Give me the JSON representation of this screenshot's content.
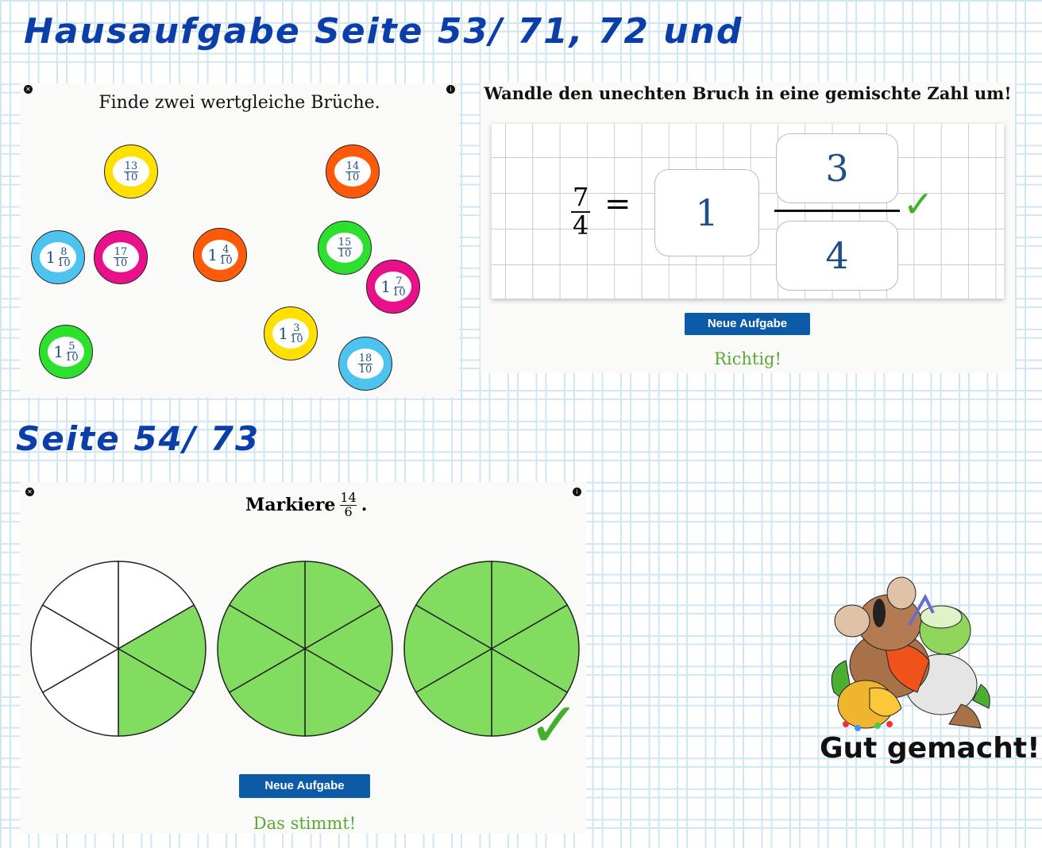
{
  "page": {
    "heading1": "Hausaufgabe   Seite 53/ 71, 72  und",
    "heading2": "Seite 54/ 73"
  },
  "task1": {
    "title": "Finde zwei wertgleiche Brüche.",
    "bubbles": [
      {
        "whole": "",
        "num": "13",
        "den": "10",
        "color": "#ffe000"
      },
      {
        "whole": "",
        "num": "14",
        "den": "10",
        "color": "#ff5a0a"
      },
      {
        "whole": "1",
        "num": "8",
        "den": "10",
        "color": "#4cc4ef"
      },
      {
        "whole": "",
        "num": "17",
        "den": "10",
        "color": "#e8118a"
      },
      {
        "whole": "1",
        "num": "4",
        "den": "10",
        "color": "#ff5a0a"
      },
      {
        "whole": "",
        "num": "15",
        "den": "10",
        "color": "#2ee02e"
      },
      {
        "whole": "1",
        "num": "7",
        "den": "10",
        "color": "#e8118a"
      },
      {
        "whole": "1",
        "num": "5",
        "den": "10",
        "color": "#2ee02e"
      },
      {
        "whole": "1",
        "num": "3",
        "den": "10",
        "color": "#ffe000"
      },
      {
        "whole": "",
        "num": "18",
        "den": "10",
        "color": "#4cc4ef"
      }
    ]
  },
  "task2": {
    "title": "Wandle den unechten Bruch in eine gemischte Zahl um!",
    "given_num": "7",
    "given_den": "4",
    "equals": "=",
    "answer_whole": "1",
    "answer_num": "3",
    "answer_den": "4",
    "button": "Neue Aufgabe",
    "feedback": "Richtig!"
  },
  "task3": {
    "title_prefix": "Markiere",
    "num": "14",
    "den": "6",
    "title_suffix": ".",
    "pies": [
      {
        "sectors": 6,
        "filled": 2
      },
      {
        "sectors": 6,
        "filled": 6
      },
      {
        "sectors": 6,
        "filled": 6
      }
    ],
    "fill_color": "#82dc5f",
    "button": "Neue Aufgabe",
    "feedback": "Das stimmt!"
  },
  "reward": {
    "text": "Gut gemacht!"
  }
}
